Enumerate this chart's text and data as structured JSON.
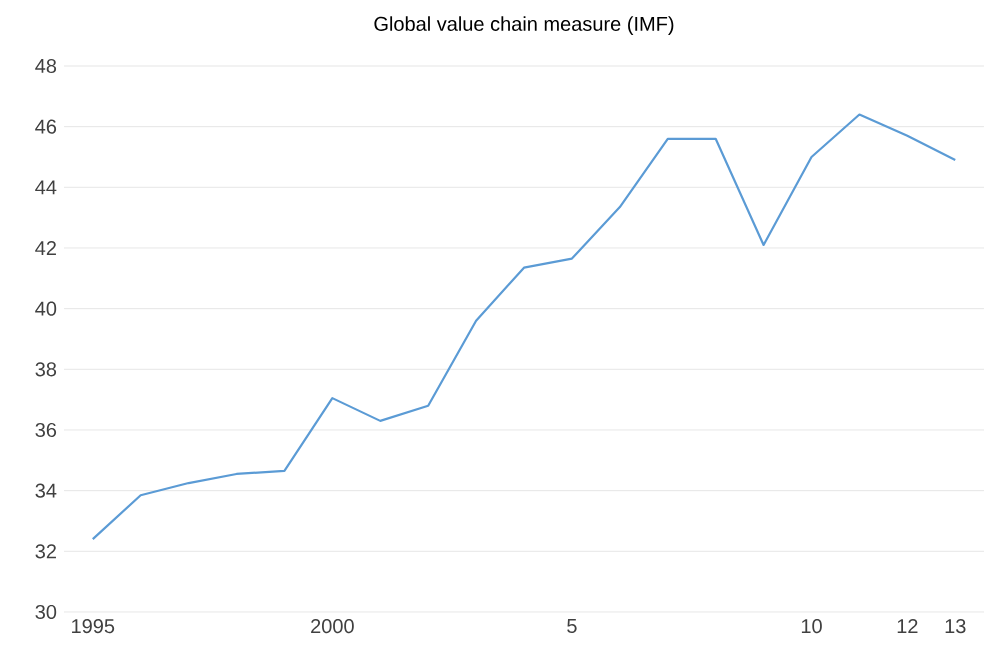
{
  "chart_data": {
    "type": "line",
    "title": "Global value chain measure (IMF)",
    "categories": [
      "1995",
      null,
      null,
      null,
      null,
      "2000",
      null,
      null,
      null,
      null,
      "5",
      null,
      null,
      null,
      null,
      "10",
      null,
      "12",
      "13"
    ],
    "values": [
      32.4,
      33.85,
      34.25,
      34.55,
      34.65,
      37.05,
      36.3,
      36.8,
      39.6,
      41.35,
      41.65,
      43.35,
      45.6,
      45.6,
      42.1,
      45.0,
      46.4,
      45.7,
      44.9
    ],
    "color": "#5b9bd5",
    "ylim": [
      30,
      48
    ],
    "yticks": [
      30,
      32,
      34,
      36,
      38,
      40,
      42,
      44,
      46,
      48
    ],
    "grid": "y"
  }
}
